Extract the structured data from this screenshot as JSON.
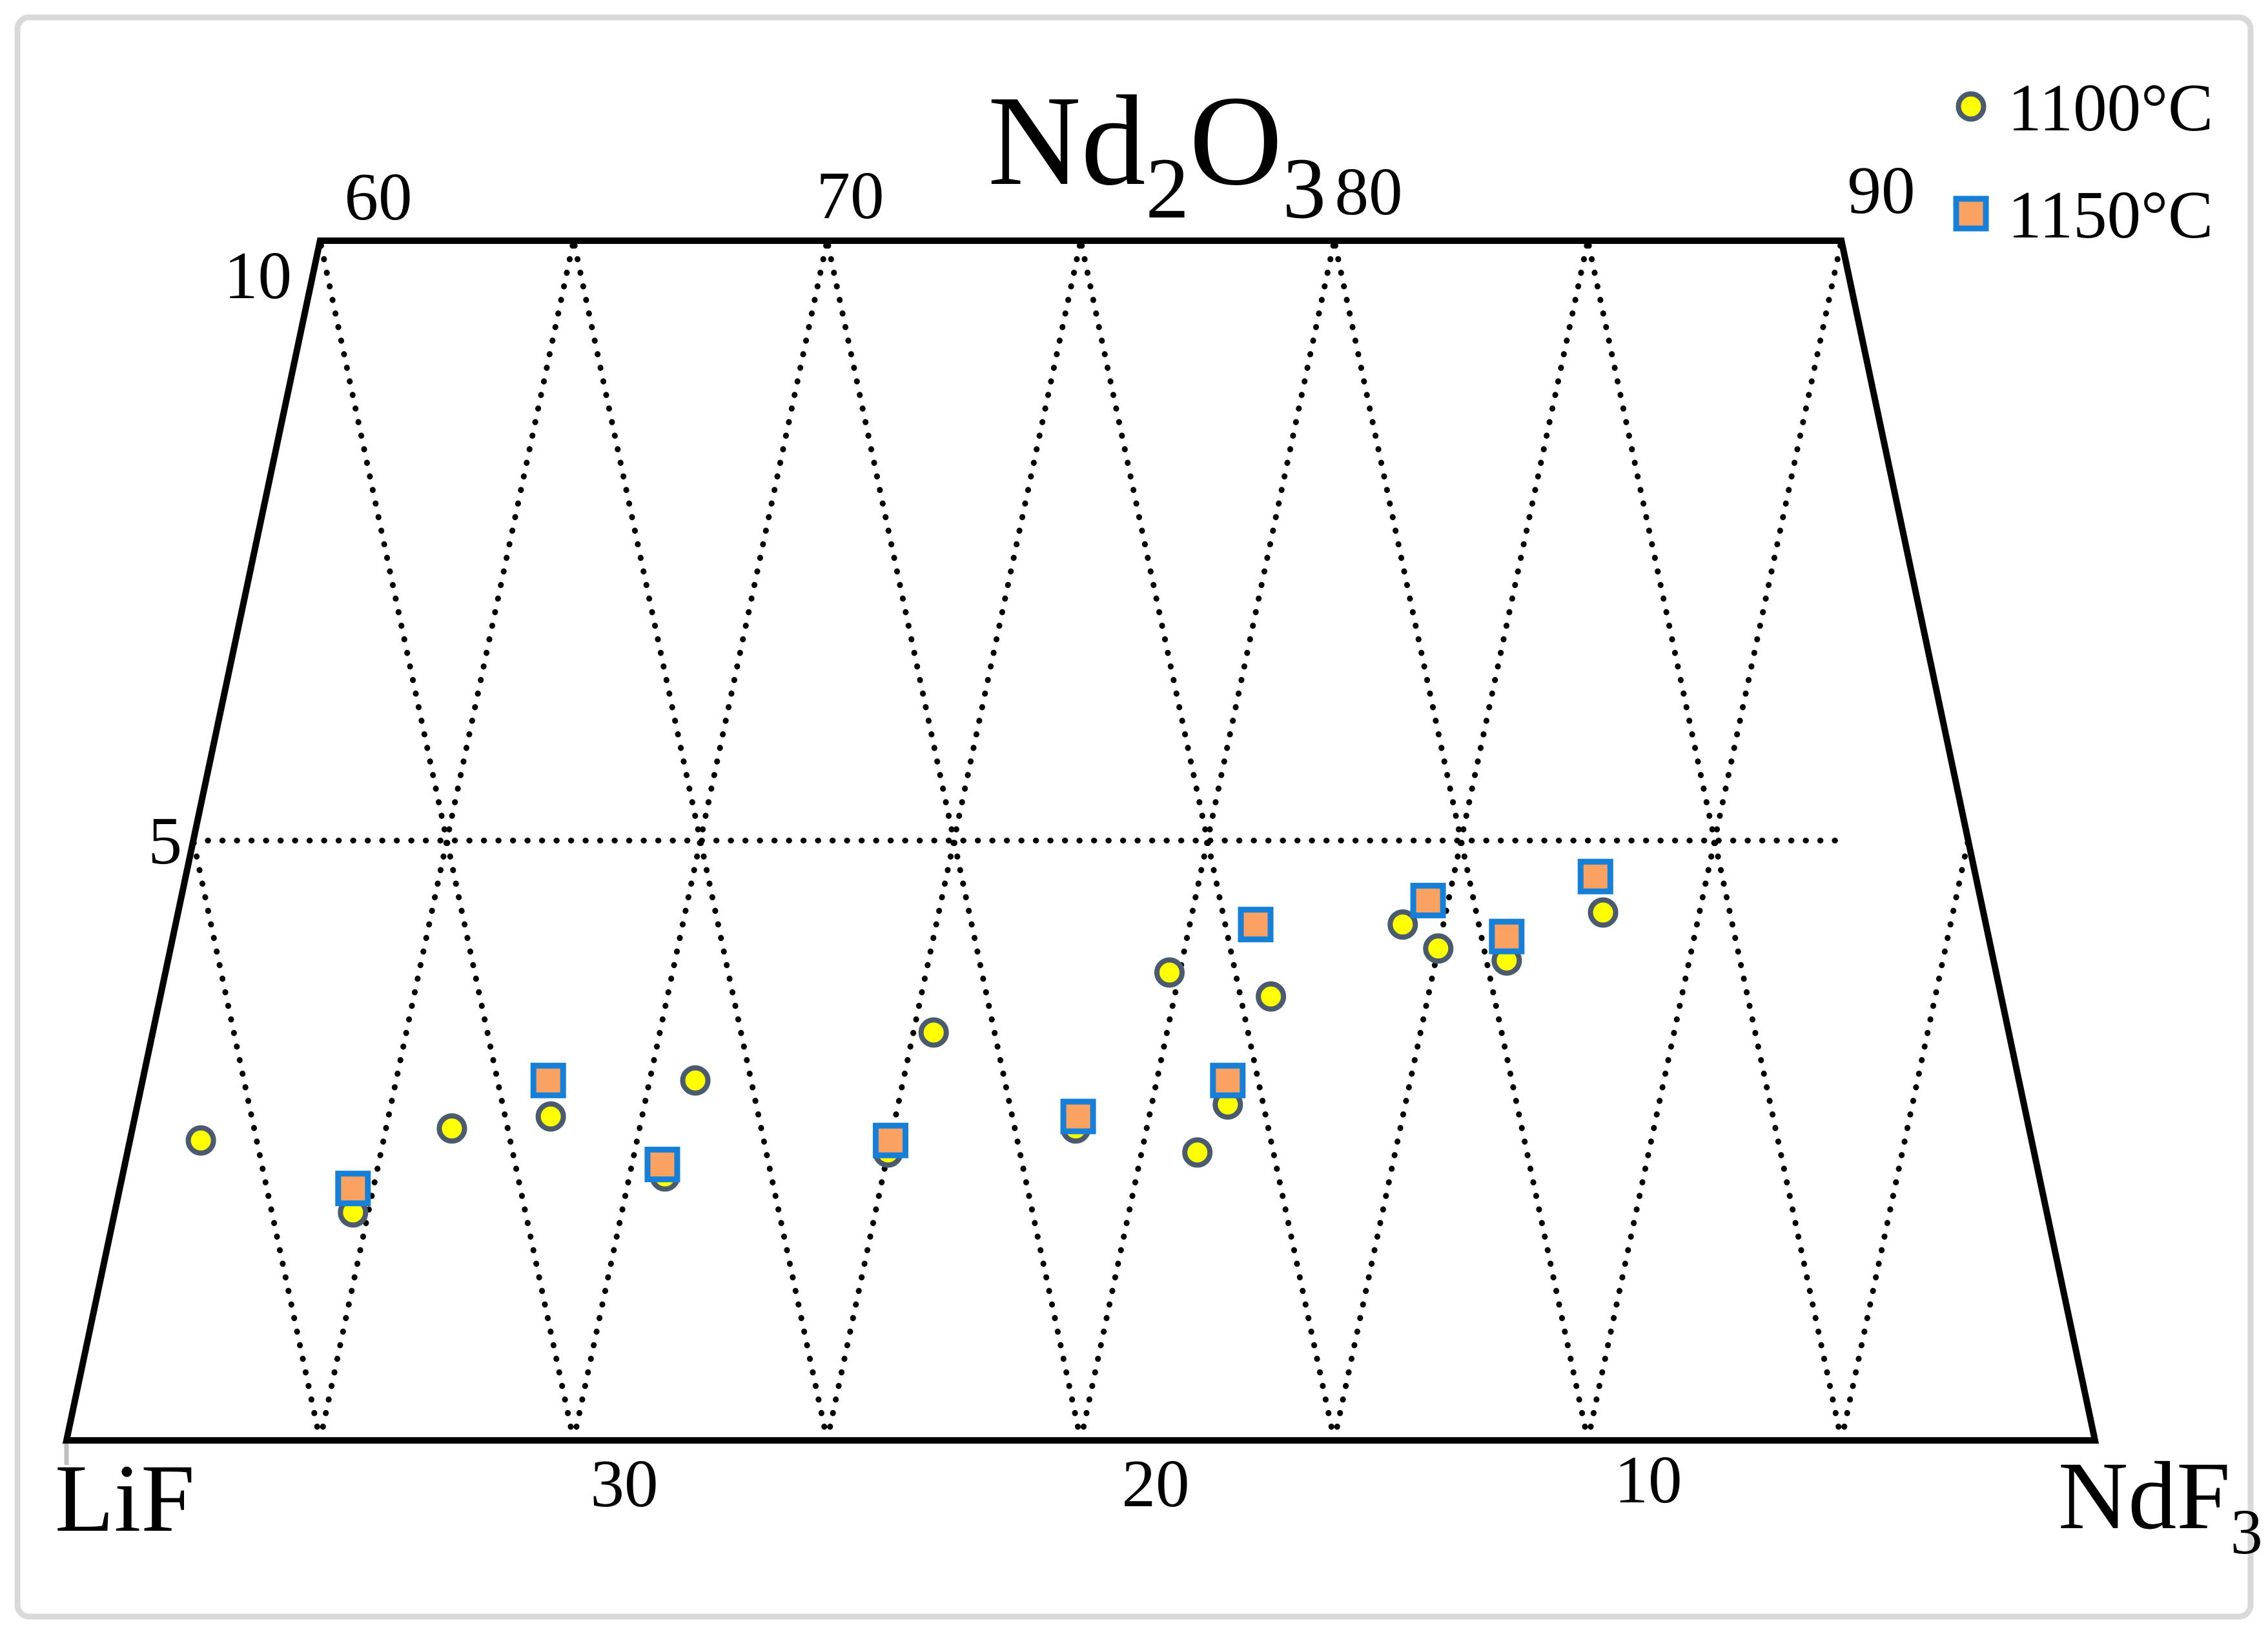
{
  "figure": {
    "description": "Ternary section (trapezoid) of the LiF–NdF3–Nd2O3 system, Nd2O3 from 0 to 10 mol%, with solubility data points at two temperatures",
    "frame_color": "#d9d9d9",
    "background": "#ffffff"
  },
  "chart_data": {
    "type": "scatter",
    "subtype": "ternary-section",
    "title_segments": [
      {
        "t": "Nd"
      },
      {
        "t": "2",
        "sub": true
      },
      {
        "t": "O"
      },
      {
        "t": "3",
        "sub": true
      }
    ],
    "title_plain": "Nd2O3",
    "corner_left_segments": [
      {
        "t": "LiF"
      }
    ],
    "corner_left_plain": "LiF",
    "corner_right_segments": [
      {
        "t": "NdF"
      },
      {
        "t": "3",
        "sub": true
      }
    ],
    "corner_right_plain": "NdF3",
    "top_axis": {
      "label": "Nd2O3",
      "ticks": [
        60,
        70,
        80,
        90
      ],
      "meaning": "NdF3 mol% along Nd2O3 = 10 line"
    },
    "bottom_axis": {
      "ticks": [
        30,
        20,
        10
      ],
      "meaning": "LiF mol% along Nd2O3 = 0 edge"
    },
    "left_axis": {
      "ticks": [
        10,
        5
      ],
      "meaning": "Nd2O3 mol%",
      "range": [
        0,
        10
      ]
    },
    "axis_ranges": {
      "ndf3_bottom": [
        60,
        100
      ],
      "nd2o3": [
        0,
        10
      ]
    },
    "grid": {
      "style": "dotted",
      "step_mol_pct": 5,
      "mid_horizontal_line_at_nd2o3": 5
    },
    "edge_color": "#000000",
    "series": [
      {
        "name": "1100°C",
        "marker": "circle",
        "fill": "#ffff00",
        "stroke": "#4a5b70",
        "points_ndf3_nd2o3": [
          [
            61.4,
            2.5
          ],
          [
            64.7,
            1.9
          ],
          [
            66.3,
            2.6
          ],
          [
            68.2,
            2.7
          ],
          [
            70.7,
            2.2
          ],
          [
            70.9,
            3.0
          ],
          [
            75.0,
            2.4
          ],
          [
            75.4,
            3.4
          ],
          [
            78.6,
            2.6
          ],
          [
            79.8,
            3.9
          ],
          [
            81.1,
            2.4
          ],
          [
            81.5,
            2.8
          ],
          [
            81.9,
            3.7
          ],
          [
            84.2,
            4.3
          ],
          [
            85.0,
            4.1
          ],
          [
            86.4,
            4.0
          ],
          [
            88.1,
            4.4
          ]
        ]
      },
      {
        "name": "1150°C",
        "marker": "square",
        "fill": "#fba262",
        "stroke": "#1680d8",
        "points_ndf3_nd2o3": [
          [
            64.6,
            2.1
          ],
          [
            68.0,
            3.0
          ],
          [
            70.6,
            2.3
          ],
          [
            75.0,
            2.5
          ],
          [
            78.6,
            2.7
          ],
          [
            81.4,
            3.0
          ],
          [
            81.3,
            4.3
          ],
          [
            84.6,
            4.5
          ],
          [
            86.3,
            4.2
          ],
          [
            87.8,
            4.7
          ]
        ]
      }
    ],
    "legend": {
      "position": "top-right",
      "items": [
        {
          "label": "1100°C",
          "marker": "circle"
        },
        {
          "label": "1150°C",
          "marker": "square"
        }
      ]
    },
    "note": "LiF mol% = 100 - NdF3 - Nd2O3"
  }
}
